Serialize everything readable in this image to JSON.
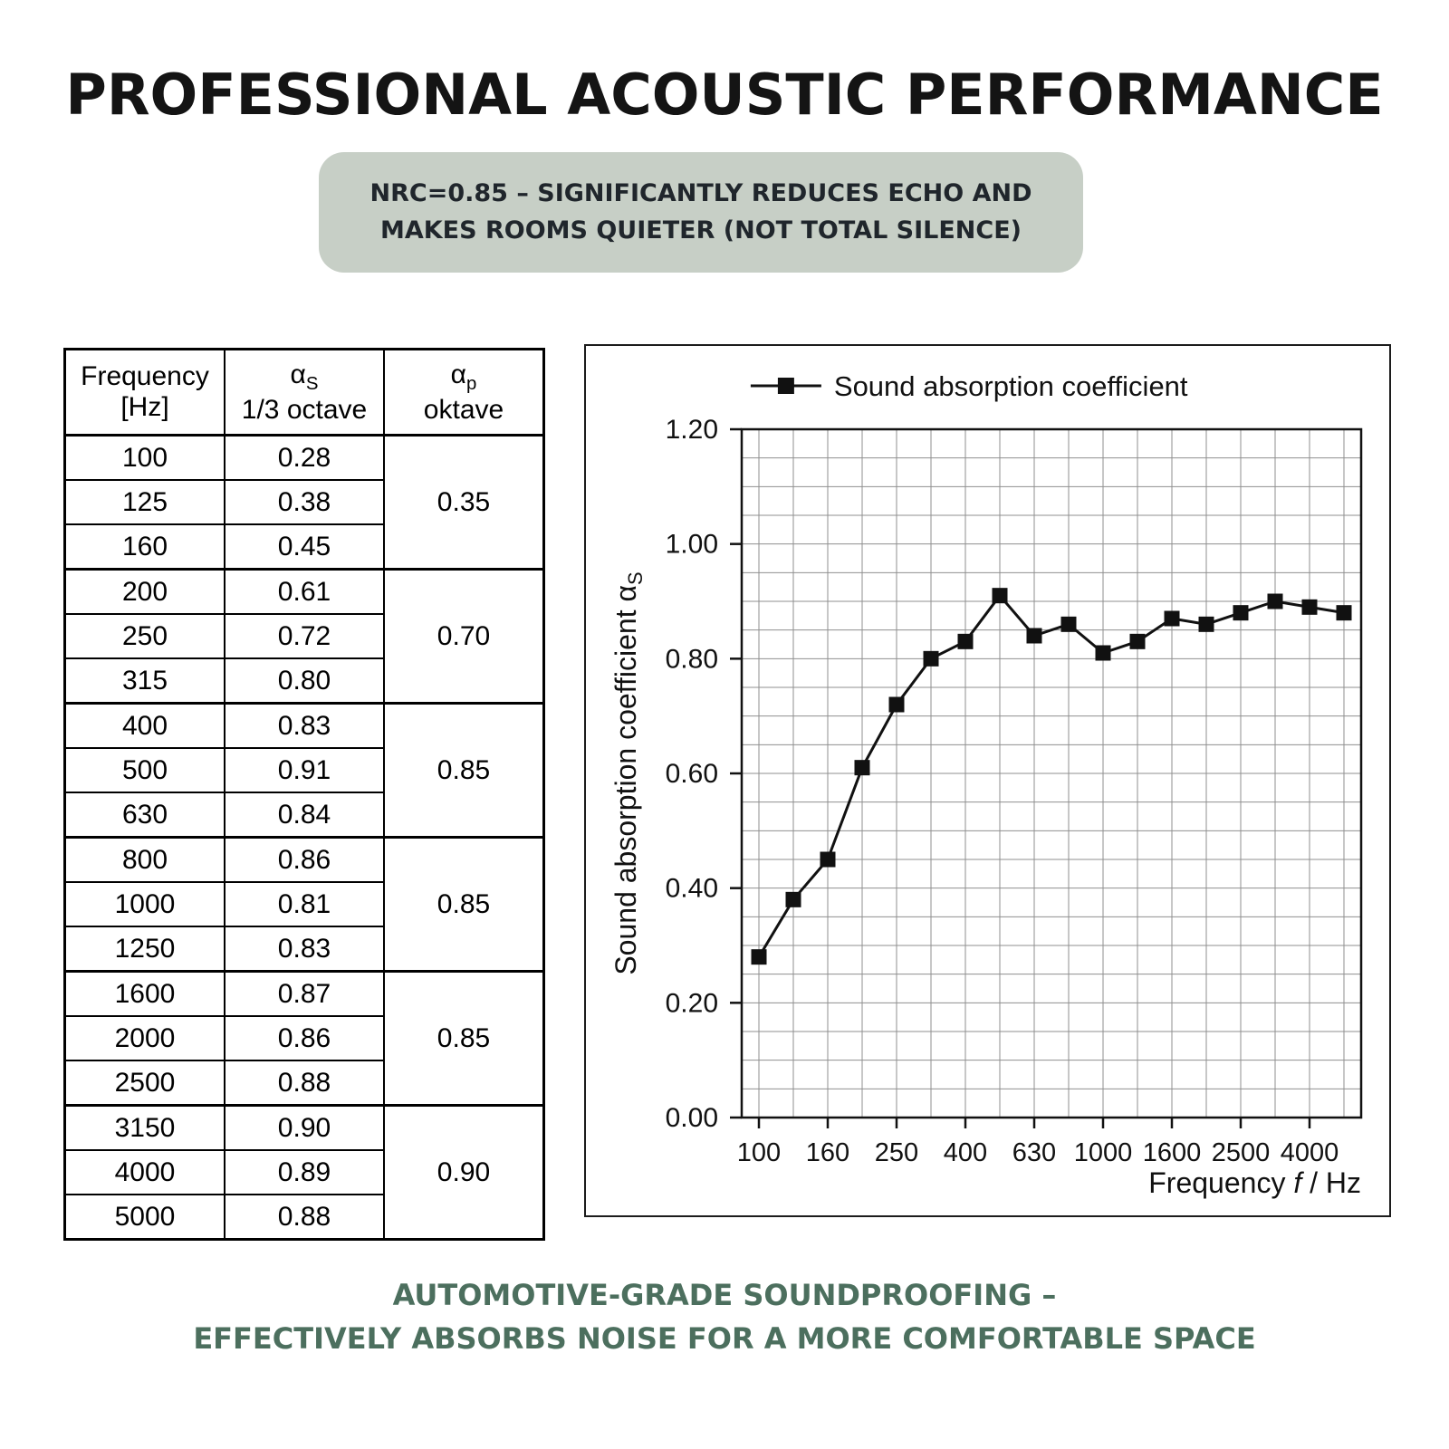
{
  "title": "PROFESSIONAL ACOUSTIC PERFORMANCE",
  "badge": {
    "line1": "NRC=0.85 – SIGNIFICANTLY REDUCES ECHO AND",
    "line2": "MAKES ROOMS QUIETER (NOT TOTAL SILENCE)"
  },
  "table": {
    "header": {
      "col1": [
        "Frequency",
        "[Hz]"
      ],
      "col2_alpha": "α",
      "col2_sub": "S",
      "col2_caption": "1/3 octave",
      "col3_alpha": "α",
      "col3_sub": "p",
      "col3_caption": "oktave"
    },
    "groups": [
      {
        "rows": [
          [
            "100",
            "0.28"
          ],
          [
            "125",
            "0.38"
          ],
          [
            "160",
            "0.45"
          ]
        ],
        "octave": "0.35"
      },
      {
        "rows": [
          [
            "200",
            "0.61"
          ],
          [
            "250",
            "0.72"
          ],
          [
            "315",
            "0.80"
          ]
        ],
        "octave": "0.70"
      },
      {
        "rows": [
          [
            "400",
            "0.83"
          ],
          [
            "500",
            "0.91"
          ],
          [
            "630",
            "0.84"
          ]
        ],
        "octave": "0.85"
      },
      {
        "rows": [
          [
            "800",
            "0.86"
          ],
          [
            "1000",
            "0.81"
          ],
          [
            "1250",
            "0.83"
          ]
        ],
        "octave": "0.85"
      },
      {
        "rows": [
          [
            "1600",
            "0.87"
          ],
          [
            "2000",
            "0.86"
          ],
          [
            "2500",
            "0.88"
          ]
        ],
        "octave": "0.85"
      },
      {
        "rows": [
          [
            "3150",
            "0.90"
          ],
          [
            "4000",
            "0.89"
          ],
          [
            "5000",
            "0.88"
          ]
        ],
        "octave": "0.90"
      }
    ]
  },
  "chart_data": {
    "type": "line",
    "legend": "Sound absorption coefficient",
    "x": [
      100,
      125,
      160,
      200,
      250,
      315,
      400,
      500,
      630,
      800,
      1000,
      1250,
      1600,
      2000,
      2500,
      3150,
      4000,
      5000
    ],
    "values": [
      0.28,
      0.38,
      0.45,
      0.61,
      0.72,
      0.8,
      0.83,
      0.91,
      0.84,
      0.86,
      0.81,
      0.83,
      0.87,
      0.86,
      0.88,
      0.9,
      0.89,
      0.88
    ],
    "ylim": [
      0,
      1.2
    ],
    "ytick_step": 0.2,
    "y_grid_step": 0.05,
    "ytick_labels": [
      "0.00",
      "0.20",
      "0.40",
      "0.60",
      "0.80",
      "1.00",
      "1.20"
    ],
    "x_tick_labels": [
      "100",
      "160",
      "250",
      "400",
      "630",
      "1000",
      "1600",
      "2500",
      "4000"
    ],
    "ylabel_parts": {
      "main": "Sound absorption coefficient α",
      "sub": "S"
    },
    "xlabel_parts": {
      "pre": "Frequency ",
      "italic": "f",
      "post": " / Hz"
    },
    "grid": true,
    "legend_position": "top",
    "marker": "square",
    "line_color": "#111111",
    "grid_color": "#8f8f8f"
  },
  "footer": {
    "line1": "AUTOMOTIVE-GRADE SOUNDPROOFING –",
    "line2": "EFFECTIVELY ABSORBS NOISE FOR A MORE COMFORTABLE SPACE"
  },
  "colors": {
    "badge_bg": "#c7cfc6",
    "footer_text": "#4c6f5e",
    "title_text": "#141414"
  }
}
